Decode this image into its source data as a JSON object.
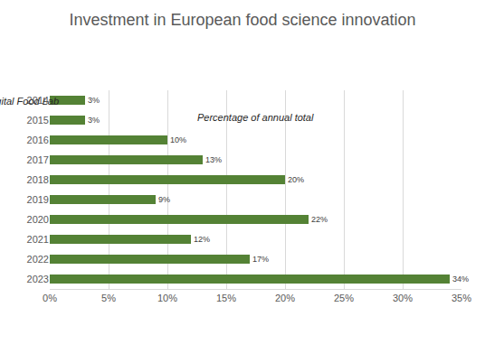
{
  "chart_data": {
    "type": "bar",
    "orientation": "horizontal",
    "title": "Investment in European food science innovation",
    "subtitle": "Percentage of annual total",
    "source": "Source: Digital Food Lab",
    "categories": [
      "2014",
      "2015",
      "2016",
      "2017",
      "2018",
      "2019",
      "2020",
      "2021",
      "2022",
      "2023"
    ],
    "values": [
      3,
      3,
      10,
      13,
      20,
      9,
      22,
      12,
      17,
      34
    ],
    "value_labels": [
      "3%",
      "3%",
      "10%",
      "13%",
      "20%",
      "9%",
      "22%",
      "12%",
      "17%",
      "34%"
    ],
    "data_labels": true,
    "color": "#548235",
    "xlim": [
      0,
      35
    ],
    "xticks": [
      {
        "value": 0,
        "label": "0%"
      },
      {
        "value": 5,
        "label": "5%"
      },
      {
        "value": 10,
        "label": "10%"
      },
      {
        "value": 15,
        "label": "15%"
      },
      {
        "value": 20,
        "label": "20%"
      },
      {
        "value": 25,
        "label": "25%"
      },
      {
        "value": 30,
        "label": "30%"
      },
      {
        "value": 35,
        "label": "35%"
      }
    ],
    "grid": true
  }
}
